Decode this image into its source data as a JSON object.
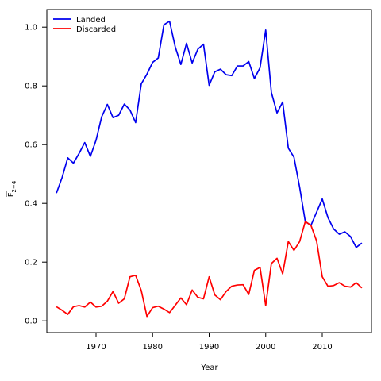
{
  "chart_data": {
    "type": "line",
    "xlabel": "Year",
    "ylabel_main": "F",
    "ylabel_sub": "2−4",
    "xlim": [
      1961.3,
      2018.7
    ],
    "ylim": [
      -0.04,
      1.06
    ],
    "xticks": [
      1970,
      1980,
      1990,
      2000,
      2010
    ],
    "yticks": [
      0.0,
      0.2,
      0.4,
      0.6,
      0.8,
      1.0
    ],
    "ytick_labels": [
      "0.0",
      "0.2",
      "0.4",
      "0.6",
      "0.8",
      "1.0"
    ],
    "legend_position": "top-left",
    "x": [
      1963,
      1964,
      1965,
      1966,
      1967,
      1968,
      1969,
      1970,
      1971,
      1972,
      1973,
      1974,
      1975,
      1976,
      1977,
      1978,
      1979,
      1980,
      1981,
      1982,
      1983,
      1984,
      1985,
      1986,
      1987,
      1988,
      1989,
      1990,
      1991,
      1992,
      1993,
      1994,
      1995,
      1996,
      1997,
      1998,
      1999,
      2000,
      2001,
      2002,
      2003,
      2004,
      2005,
      2006,
      2007,
      2008,
      2009,
      2010,
      2011,
      2012,
      2013,
      2014,
      2015,
      2016,
      2017
    ],
    "series": [
      {
        "name": "Landed",
        "color": "#0000ee",
        "values": [
          0.435,
          0.488,
          0.555,
          0.537,
          0.57,
          0.607,
          0.56,
          0.615,
          0.695,
          0.737,
          0.692,
          0.7,
          0.738,
          0.718,
          0.675,
          0.807,
          0.84,
          0.88,
          0.895,
          1.008,
          1.02,
          0.933,
          0.873,
          0.945,
          0.878,
          0.925,
          0.942,
          0.802,
          0.848,
          0.857,
          0.838,
          0.835,
          0.868,
          0.868,
          0.883,
          0.825,
          0.862,
          0.99,
          0.778,
          0.708,
          0.745,
          0.588,
          0.557,
          0.455,
          0.338,
          0.325,
          0.37,
          0.415,
          0.352,
          0.313,
          0.295,
          0.303,
          0.287,
          0.25,
          0.265
        ]
      },
      {
        "name": "Discarded",
        "color": "#ff0000",
        "values": [
          0.048,
          0.036,
          0.022,
          0.048,
          0.052,
          0.047,
          0.064,
          0.047,
          0.05,
          0.067,
          0.1,
          0.06,
          0.075,
          0.15,
          0.155,
          0.103,
          0.015,
          0.045,
          0.05,
          0.04,
          0.028,
          0.053,
          0.078,
          0.055,
          0.105,
          0.08,
          0.075,
          0.15,
          0.088,
          0.072,
          0.1,
          0.118,
          0.122,
          0.123,
          0.09,
          0.172,
          0.182,
          0.052,
          0.195,
          0.213,
          0.16,
          0.27,
          0.24,
          0.27,
          0.338,
          0.325,
          0.272,
          0.15,
          0.118,
          0.12,
          0.13,
          0.118,
          0.115,
          0.13,
          0.112
        ]
      }
    ]
  }
}
